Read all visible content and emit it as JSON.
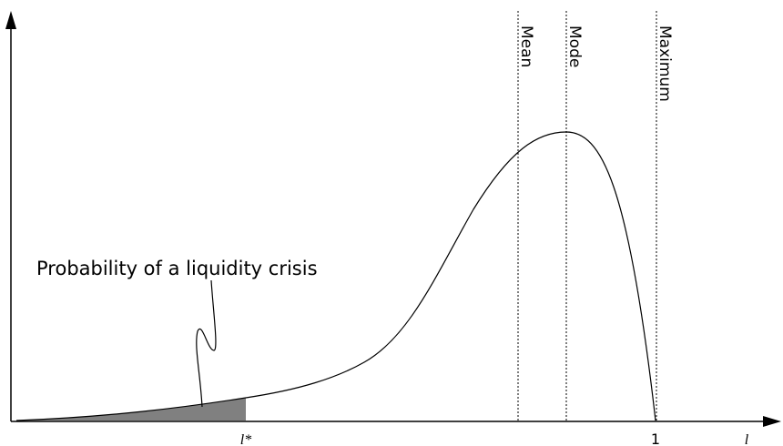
{
  "reference_lines": {
    "mean": "Mean",
    "mode": "Mode",
    "maximum": "Maximum"
  },
  "annotation": "Probability of a liquidity crisis",
  "x_axis": {
    "threshold": "l*",
    "one": "1",
    "variable": "l"
  }
}
